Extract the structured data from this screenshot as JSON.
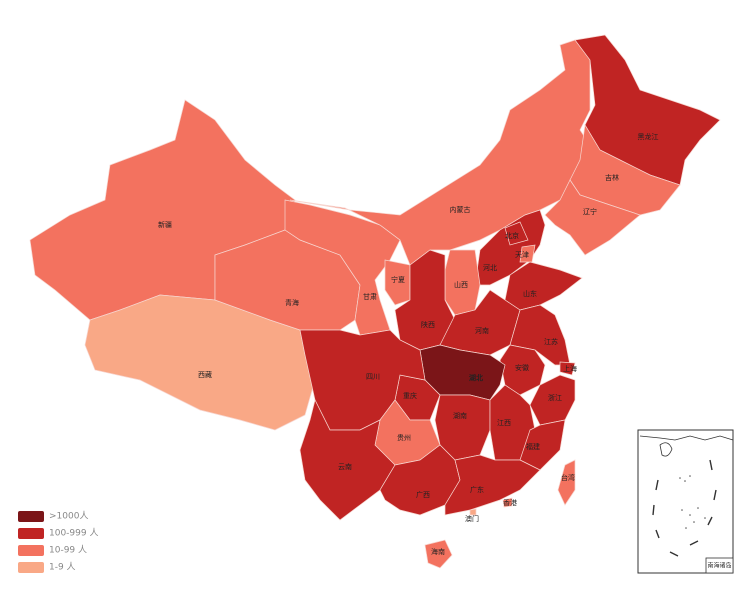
{
  "map": {
    "legend": [
      {
        "label": ">1000人",
        "color": "#7b1518"
      },
      {
        "label": "100-999 人",
        "color": "#c02423"
      },
      {
        "label": "10-99 人",
        "color": "#f3725f"
      },
      {
        "label": "1-9 人",
        "color": "#f9a886"
      }
    ],
    "regions": [
      {
        "name": "新疆",
        "level": 2
      },
      {
        "name": "西藏",
        "level": 3
      },
      {
        "name": "青海",
        "level": 2
      },
      {
        "name": "甘肃",
        "level": 2
      },
      {
        "name": "内蒙古",
        "level": 2
      },
      {
        "name": "黑龙江",
        "level": 1
      },
      {
        "name": "吉林",
        "level": 2
      },
      {
        "name": "辽宁",
        "level": 2
      },
      {
        "name": "河北",
        "level": 1
      },
      {
        "name": "北京",
        "level": 1
      },
      {
        "name": "天津",
        "level": 2
      },
      {
        "name": "宁夏",
        "level": 2
      },
      {
        "name": "山西",
        "level": 2
      },
      {
        "name": "陕西",
        "level": 1
      },
      {
        "name": "山东",
        "level": 1
      },
      {
        "name": "河南",
        "level": 1
      },
      {
        "name": "江苏",
        "level": 1
      },
      {
        "name": "安徽",
        "level": 1
      },
      {
        "name": "上海",
        "level": 1
      },
      {
        "name": "浙江",
        "level": 1
      },
      {
        "name": "湖北",
        "level": 0
      },
      {
        "name": "重庆",
        "level": 1
      },
      {
        "name": "四川",
        "level": 1
      },
      {
        "name": "湖南",
        "level": 1
      },
      {
        "name": "江西",
        "level": 1
      },
      {
        "name": "福建",
        "level": 1
      },
      {
        "name": "贵州",
        "level": 2
      },
      {
        "name": "云南",
        "level": 1
      },
      {
        "name": "广西",
        "level": 1
      },
      {
        "name": "广东",
        "level": 1
      },
      {
        "name": "台湾",
        "level": 2
      },
      {
        "name": "香港",
        "level": 2
      },
      {
        "name": "澳门",
        "level": 3
      },
      {
        "name": "海南",
        "level": 2
      }
    ],
    "inset_label": "南海诸岛"
  }
}
